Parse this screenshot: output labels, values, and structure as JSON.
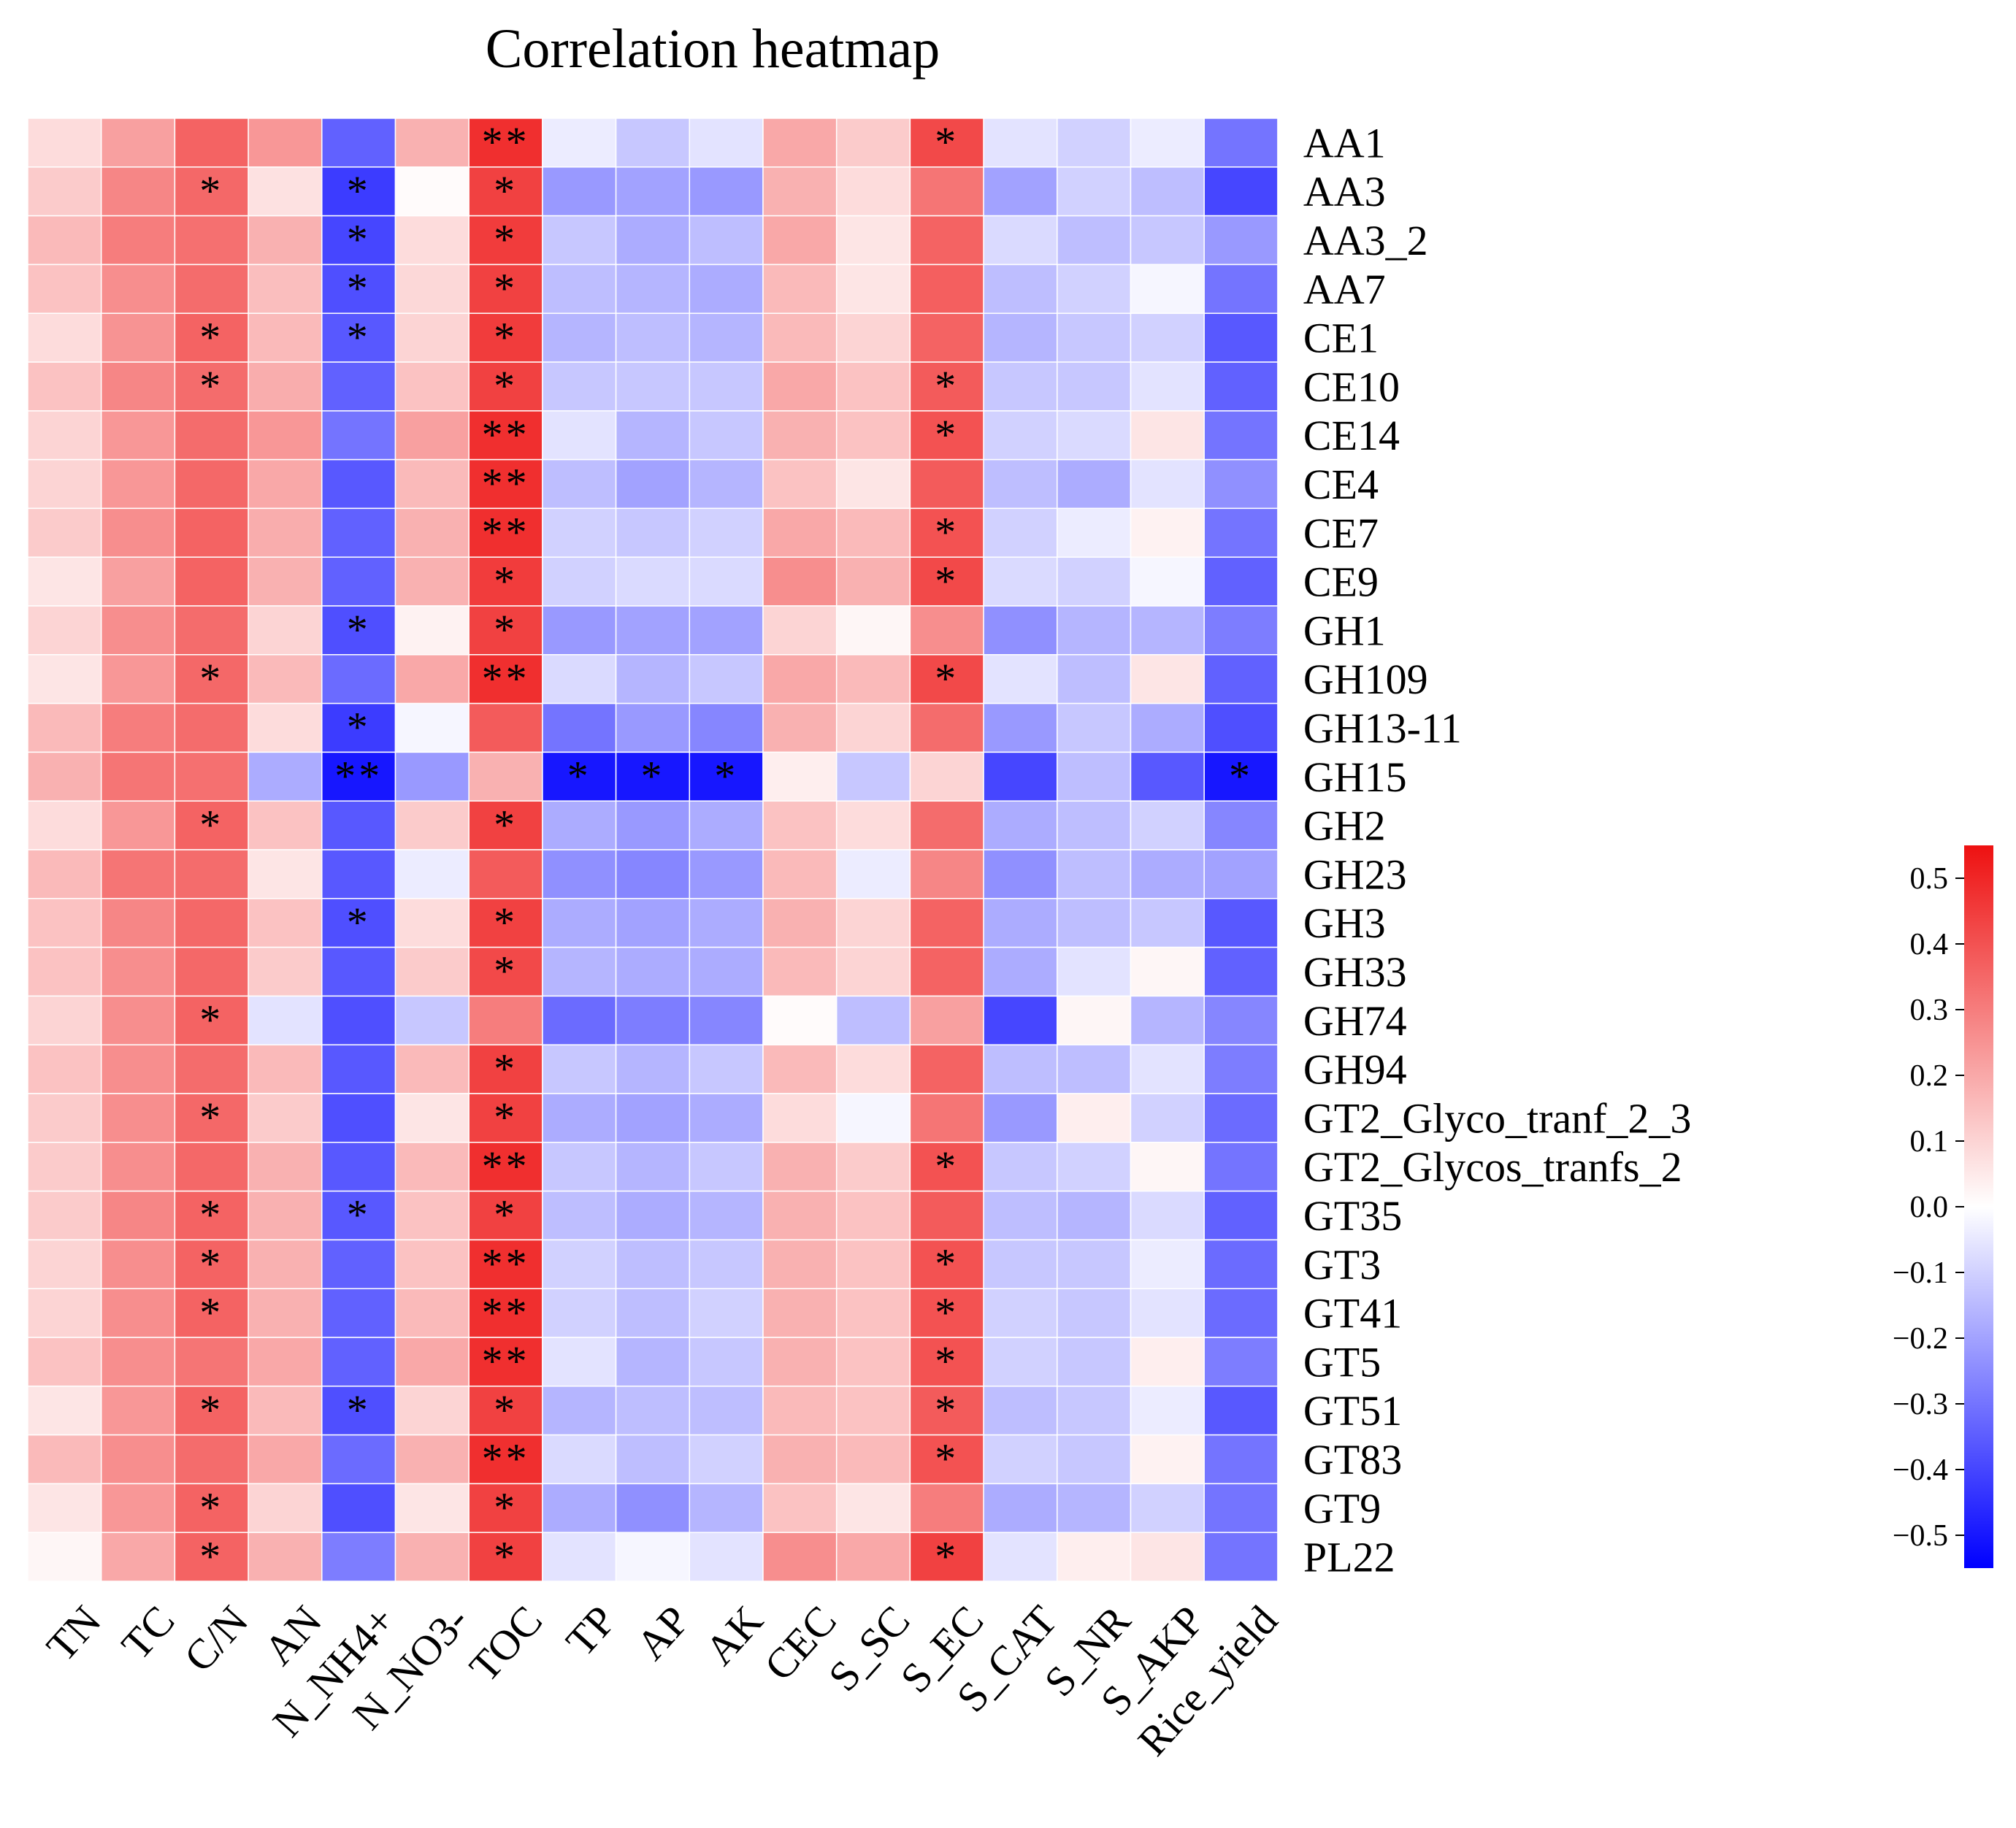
{
  "chart_data": {
    "type": "heatmap",
    "title": "Correlation heatmap",
    "xlabel": "",
    "ylabel": "",
    "columns": [
      "TN",
      "TC",
      "C/N",
      "AN",
      "N_NH4+",
      "N_NO3-",
      "TOC",
      "TP",
      "AP",
      "AK",
      "CEC",
      "S_SC",
      "S_EC",
      "S_CAT",
      "S_NR",
      "S_AKP",
      "Rice_yield"
    ],
    "rows": [
      "AA1",
      "AA3",
      "AA3_2",
      "AA7",
      "CE1",
      "CE10",
      "CE14",
      "CE4",
      "CE7",
      "CE9",
      "GH1",
      "GH109",
      "GH13-11",
      "GH15",
      "GH2",
      "GH23",
      "GH3",
      "GH33",
      "GH74",
      "GH94",
      "GT2_Glyco_tranf_2_3",
      "GT2_Glycos_tranfs_2",
      "GT35",
      "GT3",
      "GT41",
      "GT5",
      "GT51",
      "GT83",
      "GT9",
      "PL22"
    ],
    "values": [
      [
        0.08,
        0.22,
        0.36,
        0.24,
        -0.34,
        0.18,
        0.48,
        -0.04,
        -0.12,
        -0.06,
        0.2,
        0.12,
        0.42,
        -0.06,
        -0.1,
        -0.04,
        -0.3
      ],
      [
        0.12,
        0.28,
        0.35,
        0.07,
        -0.42,
        0.01,
        0.44,
        -0.22,
        -0.2,
        -0.22,
        0.18,
        0.08,
        0.32,
        -0.2,
        -0.1,
        -0.14,
        -0.4
      ],
      [
        0.16,
        0.3,
        0.33,
        0.18,
        -0.4,
        0.08,
        0.45,
        -0.12,
        -0.18,
        -0.14,
        0.2,
        0.06,
        0.36,
        -0.08,
        -0.14,
        -0.12,
        -0.22
      ],
      [
        0.14,
        0.26,
        0.34,
        0.15,
        -0.38,
        0.09,
        0.44,
        -0.14,
        -0.16,
        -0.18,
        0.16,
        0.06,
        0.37,
        -0.14,
        -0.1,
        -0.02,
        -0.3
      ],
      [
        0.08,
        0.25,
        0.36,
        0.16,
        -0.36,
        0.1,
        0.45,
        -0.16,
        -0.14,
        -0.16,
        0.16,
        0.1,
        0.36,
        -0.16,
        -0.12,
        -0.1,
        -0.36
      ],
      [
        0.14,
        0.28,
        0.34,
        0.19,
        -0.34,
        0.14,
        0.44,
        -0.12,
        -0.12,
        -0.12,
        0.2,
        0.14,
        0.38,
        -0.12,
        -0.12,
        -0.06,
        -0.34
      ],
      [
        0.1,
        0.24,
        0.34,
        0.24,
        -0.3,
        0.22,
        0.48,
        -0.06,
        -0.16,
        -0.12,
        0.18,
        0.14,
        0.4,
        -0.1,
        -0.08,
        0.06,
        -0.3
      ],
      [
        0.1,
        0.24,
        0.35,
        0.2,
        -0.36,
        0.16,
        0.48,
        -0.14,
        -0.2,
        -0.16,
        0.14,
        0.06,
        0.38,
        -0.14,
        -0.18,
        -0.06,
        -0.24
      ],
      [
        0.12,
        0.26,
        0.36,
        0.19,
        -0.34,
        0.18,
        0.48,
        -0.1,
        -0.12,
        -0.1,
        0.2,
        0.16,
        0.4,
        -0.1,
        -0.04,
        0.03,
        -0.3
      ],
      [
        0.06,
        0.22,
        0.36,
        0.18,
        -0.34,
        0.18,
        0.45,
        -0.1,
        -0.08,
        -0.08,
        0.26,
        0.18,
        0.42,
        -0.08,
        -0.1,
        -0.02,
        -0.34
      ],
      [
        0.1,
        0.26,
        0.34,
        0.1,
        -0.38,
        0.03,
        0.44,
        -0.22,
        -0.2,
        -0.2,
        0.1,
        0.02,
        0.26,
        -0.24,
        -0.16,
        -0.16,
        -0.28
      ],
      [
        0.06,
        0.24,
        0.35,
        0.16,
        -0.32,
        0.2,
        0.48,
        -0.08,
        -0.16,
        -0.12,
        0.2,
        0.16,
        0.42,
        -0.06,
        -0.14,
        0.06,
        -0.34
      ],
      [
        0.16,
        0.3,
        0.34,
        0.08,
        -0.42,
        -0.02,
        0.38,
        -0.3,
        -0.22,
        -0.26,
        0.18,
        0.1,
        0.34,
        -0.22,
        -0.12,
        -0.18,
        -0.38
      ],
      [
        0.18,
        0.32,
        0.33,
        -0.18,
        -0.5,
        -0.22,
        0.18,
        -0.5,
        -0.5,
        -0.5,
        0.04,
        -0.12,
        0.1,
        -0.4,
        -0.14,
        -0.36,
        -0.5
      ],
      [
        0.08,
        0.24,
        0.36,
        0.14,
        -0.36,
        0.12,
        0.44,
        -0.18,
        -0.22,
        -0.18,
        0.14,
        0.08,
        0.34,
        -0.18,
        -0.14,
        -0.1,
        -0.26
      ],
      [
        0.16,
        0.32,
        0.34,
        0.06,
        -0.36,
        -0.04,
        0.38,
        -0.24,
        -0.26,
        -0.22,
        0.16,
        -0.04,
        0.28,
        -0.24,
        -0.14,
        -0.18,
        -0.2
      ],
      [
        0.14,
        0.28,
        0.35,
        0.14,
        -0.38,
        0.08,
        0.44,
        -0.18,
        -0.2,
        -0.18,
        0.18,
        0.1,
        0.36,
        -0.18,
        -0.14,
        -0.12,
        -0.36
      ],
      [
        0.14,
        0.26,
        0.35,
        0.12,
        -0.36,
        0.12,
        0.42,
        -0.16,
        -0.18,
        -0.18,
        0.16,
        0.1,
        0.36,
        -0.18,
        -0.06,
        0.02,
        -0.34
      ],
      [
        0.1,
        0.26,
        0.36,
        -0.06,
        -0.38,
        -0.12,
        0.3,
        -0.32,
        -0.28,
        -0.26,
        0.01,
        -0.14,
        0.22,
        -0.4,
        0.02,
        -0.16,
        -0.26
      ],
      [
        0.14,
        0.26,
        0.34,
        0.16,
        -0.36,
        0.16,
        0.44,
        -0.12,
        -0.16,
        -0.12,
        0.16,
        0.08,
        0.36,
        -0.14,
        -0.14,
        -0.06,
        -0.28
      ],
      [
        0.12,
        0.26,
        0.35,
        0.12,
        -0.38,
        0.06,
        0.44,
        -0.18,
        -0.2,
        -0.18,
        0.08,
        -0.02,
        0.32,
        -0.22,
        0.04,
        -0.1,
        -0.32
      ],
      [
        0.12,
        0.26,
        0.35,
        0.18,
        -0.36,
        0.16,
        0.48,
        -0.12,
        -0.16,
        -0.12,
        0.18,
        0.12,
        0.4,
        -0.12,
        -0.1,
        0.02,
        -0.3
      ],
      [
        0.12,
        0.28,
        0.36,
        0.18,
        -0.36,
        0.14,
        0.44,
        -0.14,
        -0.18,
        -0.16,
        0.18,
        0.14,
        0.38,
        -0.14,
        -0.16,
        -0.08,
        -0.34
      ],
      [
        0.1,
        0.26,
        0.36,
        0.18,
        -0.34,
        0.14,
        0.48,
        -0.1,
        -0.14,
        -0.12,
        0.18,
        0.14,
        0.4,
        -0.12,
        -0.12,
        -0.04,
        -0.32
      ],
      [
        0.1,
        0.26,
        0.36,
        0.18,
        -0.34,
        0.16,
        0.48,
        -0.1,
        -0.14,
        -0.1,
        0.18,
        0.14,
        0.4,
        -0.1,
        -0.12,
        -0.06,
        -0.32
      ],
      [
        0.14,
        0.26,
        0.32,
        0.2,
        -0.34,
        0.2,
        0.48,
        -0.06,
        -0.16,
        -0.12,
        0.18,
        0.14,
        0.4,
        -0.1,
        -0.12,
        0.04,
        -0.28
      ],
      [
        0.06,
        0.24,
        0.36,
        0.16,
        -0.38,
        0.1,
        0.44,
        -0.16,
        -0.14,
        -0.14,
        0.16,
        0.14,
        0.38,
        -0.14,
        -0.12,
        -0.04,
        -0.36
      ],
      [
        0.16,
        0.26,
        0.34,
        0.2,
        -0.32,
        0.18,
        0.48,
        -0.08,
        -0.14,
        -0.1,
        0.18,
        0.16,
        0.4,
        -0.1,
        -0.12,
        0.03,
        -0.3
      ],
      [
        0.06,
        0.24,
        0.36,
        0.1,
        -0.38,
        0.06,
        0.44,
        -0.18,
        -0.24,
        -0.16,
        0.14,
        0.06,
        0.3,
        -0.18,
        -0.16,
        -0.1,
        -0.3
      ],
      [
        0.02,
        0.2,
        0.36,
        0.18,
        -0.28,
        0.18,
        0.44,
        -0.06,
        -0.02,
        -0.06,
        0.26,
        0.2,
        0.44,
        -0.06,
        0.04,
        0.06,
        -0.3
      ]
    ],
    "significance": [
      [
        "",
        "",
        "",
        "",
        "",
        "",
        "**",
        "",
        "",
        "",
        "",
        "",
        "*",
        "",
        "",
        "",
        ""
      ],
      [
        "",
        "",
        "*",
        "",
        "*",
        "",
        "*",
        "",
        "",
        "",
        "",
        "",
        "",
        "",
        "",
        "",
        ""
      ],
      [
        "",
        "",
        "",
        "",
        "*",
        "",
        "*",
        "",
        "",
        "",
        "",
        "",
        "",
        "",
        "",
        "",
        ""
      ],
      [
        "",
        "",
        "",
        "",
        "*",
        "",
        "*",
        "",
        "",
        "",
        "",
        "",
        "",
        "",
        "",
        "",
        ""
      ],
      [
        "",
        "",
        "*",
        "",
        "*",
        "",
        "*",
        "",
        "",
        "",
        "",
        "",
        "",
        "",
        "",
        "",
        ""
      ],
      [
        "",
        "",
        "*",
        "",
        "",
        "",
        "*",
        "",
        "",
        "",
        "",
        "",
        "*",
        "",
        "",
        "",
        ""
      ],
      [
        "",
        "",
        "",
        "",
        "",
        "",
        "**",
        "",
        "",
        "",
        "",
        "",
        "*",
        "",
        "",
        "",
        ""
      ],
      [
        "",
        "",
        "",
        "",
        "",
        "",
        "**",
        "",
        "",
        "",
        "",
        "",
        "",
        "",
        "",
        "",
        ""
      ],
      [
        "",
        "",
        "",
        "",
        "",
        "",
        "**",
        "",
        "",
        "",
        "",
        "",
        "*",
        "",
        "",
        "",
        ""
      ],
      [
        "",
        "",
        "",
        "",
        "",
        "",
        "*",
        "",
        "",
        "",
        "",
        "",
        "*",
        "",
        "",
        "",
        ""
      ],
      [
        "",
        "",
        "",
        "",
        "*",
        "",
        "*",
        "",
        "",
        "",
        "",
        "",
        "",
        "",
        "",
        "",
        ""
      ],
      [
        "",
        "",
        "*",
        "",
        "",
        "",
        "**",
        "",
        "",
        "",
        "",
        "",
        "*",
        "",
        "",
        "",
        ""
      ],
      [
        "",
        "",
        "",
        "",
        "*",
        "",
        "",
        "",
        "",
        "",
        "",
        "",
        "",
        "",
        "",
        "",
        ""
      ],
      [
        "",
        "",
        "",
        "",
        "**",
        "",
        "",
        "*",
        "*",
        "*",
        "",
        "",
        "",
        "",
        "",
        "",
        "*"
      ],
      [
        "",
        "",
        "*",
        "",
        "",
        "",
        "*",
        "",
        "",
        "",
        "",
        "",
        "",
        "",
        "",
        "",
        ""
      ],
      [
        "",
        "",
        "",
        "",
        "",
        "",
        "",
        "",
        "",
        "",
        "",
        "",
        "",
        "",
        "",
        "",
        ""
      ],
      [
        "",
        "",
        "",
        "",
        "*",
        "",
        "*",
        "",
        "",
        "",
        "",
        "",
        "",
        "",
        "",
        "",
        ""
      ],
      [
        "",
        "",
        "",
        "",
        "",
        "",
        "*",
        "",
        "",
        "",
        "",
        "",
        "",
        "",
        "",
        "",
        ""
      ],
      [
        "",
        "",
        "*",
        "",
        "",
        "",
        "",
        "",
        "",
        "",
        "",
        "",
        "",
        "",
        "",
        "",
        ""
      ],
      [
        "",
        "",
        "",
        "",
        "",
        "",
        "*",
        "",
        "",
        "",
        "",
        "",
        "",
        "",
        "",
        "",
        ""
      ],
      [
        "",
        "",
        "*",
        "",
        "",
        "",
        "*",
        "",
        "",
        "",
        "",
        "",
        "",
        "",
        "",
        "",
        ""
      ],
      [
        "",
        "",
        "",
        "",
        "",
        "",
        "**",
        "",
        "",
        "",
        "",
        "",
        "*",
        "",
        "",
        "",
        ""
      ],
      [
        "",
        "",
        "*",
        "",
        "*",
        "",
        "*",
        "",
        "",
        "",
        "",
        "",
        "",
        "",
        "",
        "",
        ""
      ],
      [
        "",
        "",
        "*",
        "",
        "",
        "",
        "**",
        "",
        "",
        "",
        "",
        "",
        "*",
        "",
        "",
        "",
        ""
      ],
      [
        "",
        "",
        "*",
        "",
        "",
        "",
        "**",
        "",
        "",
        "",
        "",
        "",
        "*",
        "",
        "",
        "",
        ""
      ],
      [
        "",
        "",
        "",
        "",
        "",
        "",
        "**",
        "",
        "",
        "",
        "",
        "",
        "*",
        "",
        "",
        "",
        ""
      ],
      [
        "",
        "",
        "*",
        "",
        "*",
        "",
        "*",
        "",
        "",
        "",
        "",
        "",
        "*",
        "",
        "",
        "",
        ""
      ],
      [
        "",
        "",
        "",
        "",
        "",
        "",
        "**",
        "",
        "",
        "",
        "",
        "",
        "*",
        "",
        "",
        "",
        ""
      ],
      [
        "",
        "",
        "*",
        "",
        "",
        "",
        "*",
        "",
        "",
        "",
        "",
        "",
        "",
        "",
        "",
        "",
        ""
      ],
      [
        "",
        "",
        "*",
        "",
        "",
        "",
        "*",
        "",
        "",
        "",
        "",
        "",
        "*",
        "",
        "",
        "",
        ""
      ]
    ],
    "colorbar": {
      "range": [
        -0.55,
        0.55
      ],
      "ticks": [
        "0.5",
        "0.4",
        "0.3",
        "0.2",
        "0.1",
        "0.0",
        "−0.1",
        "−0.2",
        "−0.3",
        "−0.4",
        "−0.5"
      ],
      "low_color": "#0000ff",
      "mid_color": "#ffffff",
      "high_color": "#ee1111"
    }
  }
}
